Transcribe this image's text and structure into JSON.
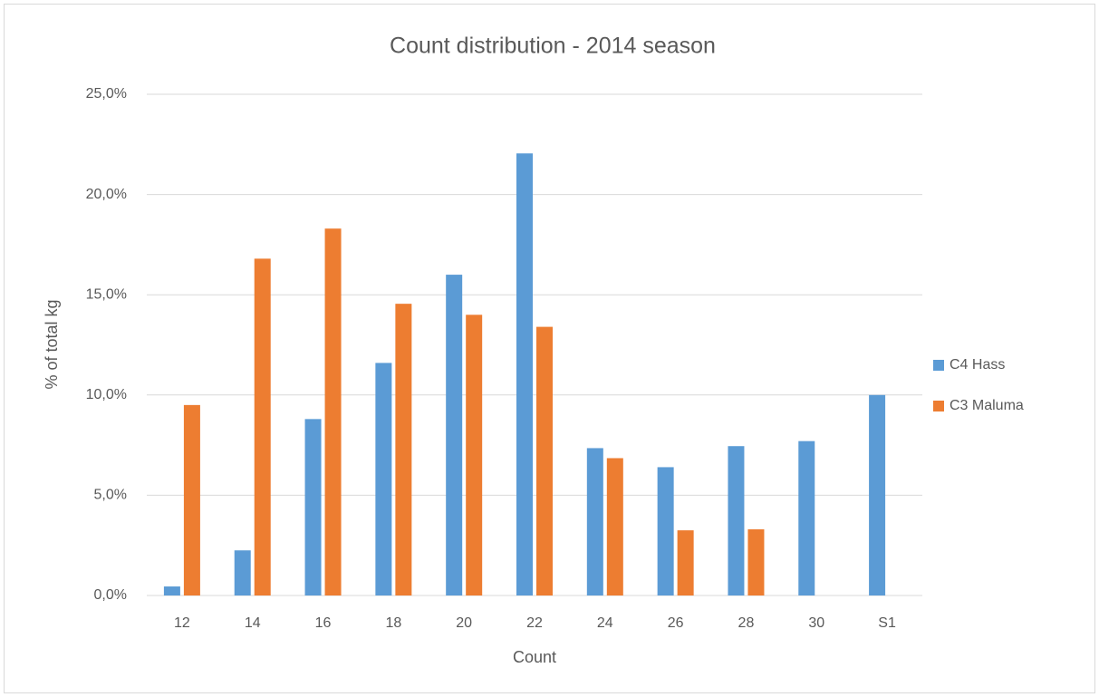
{
  "chart_data": {
    "type": "bar",
    "title": "Count distribution - 2014 season",
    "x_label": "Count",
    "y_label": "% of total kg",
    "categories": [
      "12",
      "14",
      "16",
      "18",
      "20",
      "22",
      "24",
      "26",
      "28",
      "30",
      "S1"
    ],
    "series": [
      {
        "name": "C4 Hass",
        "color": "#5b9bd5",
        "values": [
          0.45,
          2.25,
          8.8,
          11.6,
          16.0,
          22.05,
          7.35,
          6.4,
          7.45,
          7.7,
          10.0
        ]
      },
      {
        "name": "C3 Maluma",
        "color": "#ed7d31",
        "values": [
          9.5,
          16.8,
          18.3,
          14.55,
          14.0,
          13.4,
          6.85,
          3.25,
          3.3,
          null,
          null
        ]
      }
    ],
    "ylim": [
      0,
      25
    ],
    "yticks": [
      {
        "value": 0,
        "label": "0,0%"
      },
      {
        "value": 5,
        "label": "5,0%"
      },
      {
        "value": 10,
        "label": "10,0%"
      },
      {
        "value": 15,
        "label": "15,0%"
      },
      {
        "value": 20,
        "label": "20,0%"
      },
      {
        "value": 25,
        "label": "25,0%"
      }
    ],
    "grid": true,
    "legend": "right"
  }
}
